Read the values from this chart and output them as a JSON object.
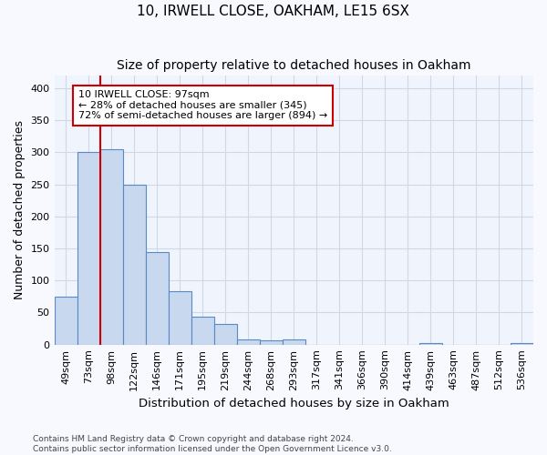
{
  "title": "10, IRWELL CLOSE, OAKHAM, LE15 6SX",
  "subtitle": "Size of property relative to detached houses in Oakham",
  "xlabel": "Distribution of detached houses by size in Oakham",
  "ylabel": "Number of detached properties",
  "categories": [
    "49sqm",
    "73sqm",
    "98sqm",
    "122sqm",
    "146sqm",
    "171sqm",
    "195sqm",
    "219sqm",
    "244sqm",
    "268sqm",
    "293sqm",
    "317sqm",
    "341sqm",
    "366sqm",
    "390sqm",
    "414sqm",
    "439sqm",
    "463sqm",
    "487sqm",
    "512sqm",
    "536sqm"
  ],
  "values": [
    75,
    300,
    305,
    250,
    145,
    83,
    43,
    32,
    8,
    6,
    8,
    0,
    0,
    0,
    0,
    0,
    2,
    0,
    0,
    0,
    2
  ],
  "bar_color": "#c8d8ee",
  "bar_edge_color": "#5a8ac6",
  "highlight_color": "#cc0000",
  "annotation_line1": "10 IRWELL CLOSE: 97sqm",
  "annotation_line2": "← 28% of detached houses are smaller (345)",
  "annotation_line3": "72% of semi-detached houses are larger (894) →",
  "vline_x": 2.0,
  "footer_line1": "Contains HM Land Registry data © Crown copyright and database right 2024.",
  "footer_line2": "Contains public sector information licensed under the Open Government Licence v3.0.",
  "fig_bg_color": "#f8f8ff",
  "plot_bg_color": "#f0f4fc",
  "grid_color": "#d0d8e8",
  "ylim_max": 420,
  "yticks": [
    0,
    50,
    100,
    150,
    200,
    250,
    300,
    350,
    400
  ],
  "title_fontsize": 11,
  "subtitle_fontsize": 10,
  "axis_label_fontsize": 9,
  "tick_fontsize": 8,
  "footer_fontsize": 6.5
}
